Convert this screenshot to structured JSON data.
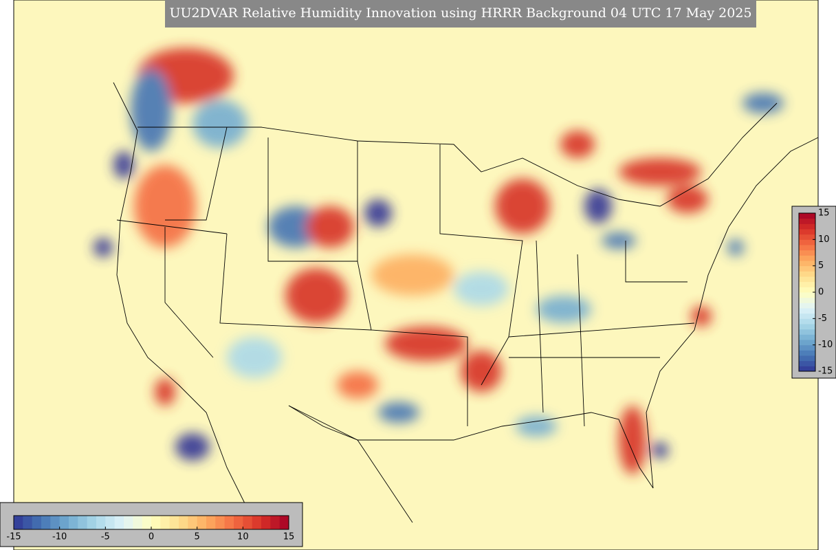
{
  "title": "UU2DVAR Relative Humidity Innovation using HRRR Background 04 UTC 17 May 2025",
  "colormap": [
    "#313695",
    "#4575b4",
    "#74add1",
    "#abd9e9",
    "#e0f3f8",
    "#ffffbf",
    "#fee090",
    "#fdae61",
    "#f46d43",
    "#d73027",
    "#a50026"
  ],
  "colorbars": [
    {
      "orientation": "horizontal",
      "range": [
        -15,
        15
      ],
      "ticks": [
        -15,
        -10,
        -5,
        0,
        5,
        10,
        15
      ]
    },
    {
      "orientation": "vertical",
      "range": [
        -15,
        15
      ],
      "ticks": [
        15,
        10,
        5,
        0,
        -5,
        -10,
        -15
      ]
    }
  ]
}
